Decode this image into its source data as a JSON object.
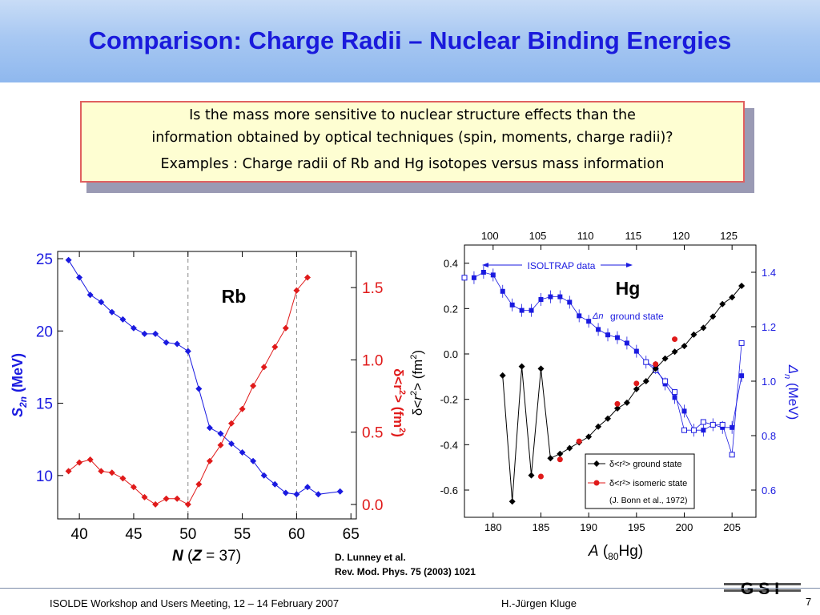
{
  "title": "Comparison: Charge Radii – Nuclear Binding Energies",
  "question": {
    "line1": "Is the mass more sensitive to nuclear structure effects than the",
    "line2": "information obtained by optical techniques (spin, moments, charge radii)?",
    "line3": "Examples : Charge radii of Rb and Hg isotopes versus mass information"
  },
  "colors": {
    "blue": "#1a1ae0",
    "red": "#e01a1a",
    "black": "#000000",
    "title": "#1a1adc"
  },
  "chart_data": [
    {
      "type": "line",
      "label": "Rb",
      "xlabel": "N (Z = 37)",
      "ylabel_left": "S2n (MeV)",
      "ylabel_right": "δ<r²> (fm²)",
      "xlim": [
        38,
        65.5
      ],
      "ylim_left": [
        7,
        25.5
      ],
      "ylim_right": [
        -0.1,
        1.75
      ],
      "xticks": [
        40,
        45,
        50,
        55,
        60,
        65
      ],
      "yticks_left": [
        10,
        15,
        20,
        25
      ],
      "yticks_right": [
        "0.0",
        "0.5",
        "1.0",
        "1.5"
      ],
      "vlines": [
        50,
        60
      ],
      "series": [
        {
          "axis": "left",
          "x": [
            39,
            40,
            41,
            42,
            43,
            44,
            45,
            46,
            47,
            48,
            49,
            50,
            51,
            52,
            53,
            54,
            55,
            56,
            57,
            58,
            59,
            60,
            61,
            62,
            64
          ],
          "y": [
            24.9,
            23.7,
            22.5,
            22.0,
            21.3,
            20.8,
            20.2,
            19.8,
            19.8,
            19.2,
            19.1,
            18.6,
            16.0,
            13.3,
            12.9,
            12.2,
            11.6,
            11.0,
            10.0,
            9.4,
            8.8,
            8.7,
            9.2,
            8.7,
            8.9
          ]
        },
        {
          "axis": "right",
          "x": [
            39,
            40,
            41,
            42,
            43,
            44,
            45,
            46,
            47,
            48,
            49,
            50,
            51,
            52,
            53,
            54,
            55,
            56,
            57,
            58,
            59,
            60,
            61
          ],
          "y": [
            0.23,
            0.29,
            0.31,
            0.23,
            0.22,
            0.18,
            0.12,
            0.05,
            0.0,
            0.04,
            0.04,
            0.0,
            0.14,
            0.3,
            0.41,
            0.56,
            0.66,
            0.82,
            0.95,
            1.09,
            1.22,
            1.48,
            1.57
          ]
        }
      ]
    },
    {
      "type": "line",
      "label": "Hg",
      "xlabel": "A (80Hg)",
      "ylabel_left": "δ<r²> (fm²)",
      "ylabel_right": "Δn (MeV)",
      "xlim": [
        177,
        207.5
      ],
      "ylim_left": [
        -0.72,
        0.48
      ],
      "ylim_right": [
        0.5,
        1.5
      ],
      "xticks": [
        180,
        185,
        190,
        195,
        200,
        205
      ],
      "xticks_top": [
        "100",
        "105",
        "110",
        "115",
        "120",
        "125"
      ],
      "yticks_left": [
        "0.4",
        "0.2",
        "0.0",
        "-0.2",
        "-0.4",
        "-0.6"
      ],
      "yticks_right": [
        "0.6",
        "0.8",
        "1.0",
        "1.2",
        "1.4"
      ],
      "annotations": [
        "ISOLTRAP data",
        "ground state",
        "Δn"
      ],
      "legend": [
        "δ<r²> ground state",
        "δ<r²> isomeric state",
        "(J. Bonn et al., 1972)"
      ],
      "series": [
        {
          "name": "δ<r²> ground state",
          "axis": "left",
          "marker": "diamond-black",
          "x": [
            181,
            182,
            183,
            184,
            185,
            186,
            187,
            188,
            189,
            190,
            191,
            192,
            193,
            194,
            195,
            196,
            197,
            198,
            199,
            200,
            201,
            202,
            203,
            204,
            205,
            206
          ],
          "y": [
            -0.095,
            -0.65,
            -0.055,
            -0.535,
            -0.065,
            -0.46,
            -0.44,
            -0.415,
            -0.39,
            -0.365,
            -0.32,
            -0.285,
            -0.24,
            -0.215,
            -0.155,
            -0.12,
            -0.065,
            -0.02,
            0.01,
            0.035,
            0.085,
            0.115,
            0.165,
            0.22,
            0.25,
            0.3
          ]
        },
        {
          "name": "δ<r²> isomeric state",
          "axis": "left",
          "marker": "circle-red",
          "x": [
            185,
            187,
            189,
            193,
            195,
            197,
            199
          ],
          "y": [
            -0.54,
            -0.465,
            -0.385,
            -0.22,
            -0.13,
            -0.045,
            0.065
          ]
        },
        {
          "name": "Δn ground state",
          "axis": "right",
          "marker": "square-blue",
          "x": [
            178,
            179,
            180,
            181,
            182,
            183,
            184,
            185,
            186,
            187,
            188,
            189,
            190,
            191,
            192,
            193,
            194,
            195,
            196,
            197,
            198,
            199,
            200,
            201,
            202,
            203,
            204,
            205,
            206
          ],
          "y": [
            1.38,
            1.4,
            1.39,
            1.33,
            1.28,
            1.26,
            1.26,
            1.3,
            1.31,
            1.31,
            1.29,
            1.24,
            1.22,
            1.19,
            1.17,
            1.16,
            1.14,
            1.11,
            1.07,
            1.05,
            0.99,
            0.94,
            0.89,
            0.82,
            0.82,
            0.84,
            0.83,
            0.83,
            1.02
          ]
        },
        {
          "name": "Δn open",
          "axis": "right",
          "marker": "square-open",
          "x": [
            177,
            196,
            197,
            198,
            199,
            200,
            201,
            202,
            203,
            204,
            205,
            206
          ],
          "y": [
            1.38,
            1.07,
            1.04,
            1.0,
            0.96,
            0.82,
            0.82,
            0.85,
            0.84,
            0.84,
            0.73,
            1.14
          ]
        }
      ]
    }
  ],
  "rb": {
    "xlabel_italic": "N",
    "xlabel_rest": " (",
    "xlabel_z": "Z",
    "xlabel_end": " = 37)",
    "label": "Rb"
  },
  "hg": {
    "xlabel_a": "A",
    "xlabel_open": " (",
    "xlabel_sub": "80",
    "xlabel_hg": "Hg)",
    "label": "Hg"
  },
  "credit": {
    "line1": "D. Lunney et al.",
    "line2": "Rev. Mod. Phys. 75 (2003) 1021"
  },
  "footer": {
    "left": "ISOLDE Workshop and Users Meeting, 12 – 14  February 2007",
    "center": "H.-Jürgen Kluge",
    "page": "7",
    "logo": "GSI"
  }
}
